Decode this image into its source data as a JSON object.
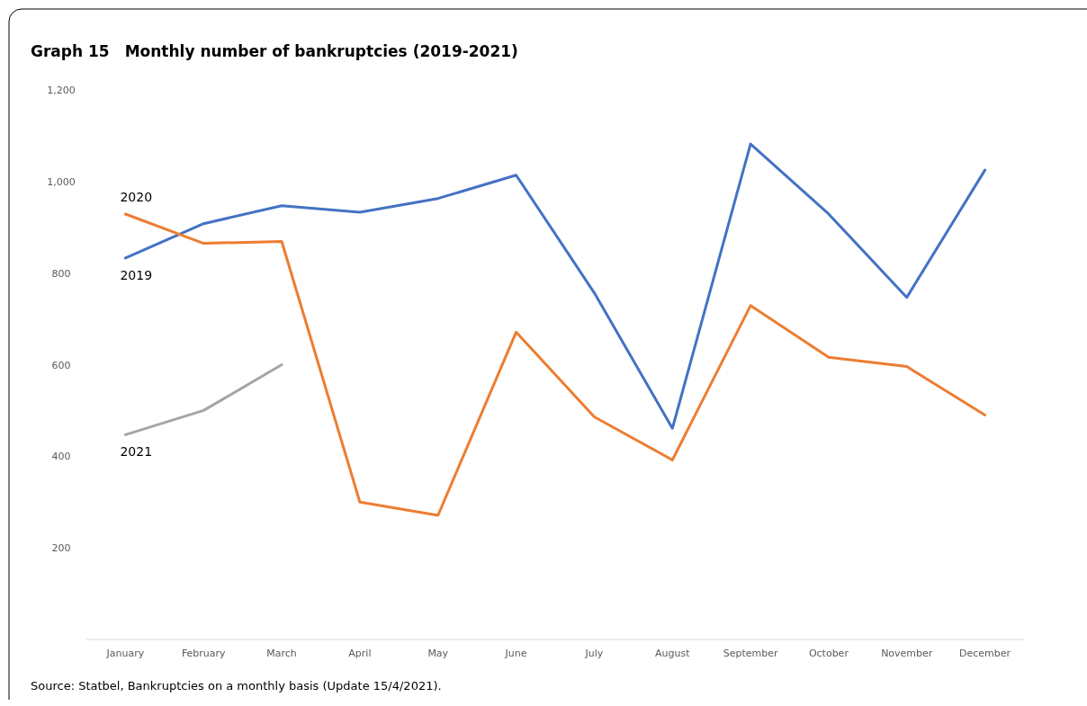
{
  "chart_data": {
    "type": "line",
    "title": "Graph 15 Monthly number of bankruptcies (2019-2021)",
    "categories": [
      "January",
      "February",
      "March",
      "April",
      "May",
      "June",
      "July",
      "August",
      "September",
      "October",
      "November",
      "December"
    ],
    "series": [
      {
        "name": "2019",
        "color": "#4472c4",
        "values": [
          833,
          908,
          947,
          933,
          963,
          1014,
          757,
          461,
          1082,
          929,
          747,
          1025
        ]
      },
      {
        "name": "2020",
        "color": "#ed7d31",
        "values": [
          929,
          865,
          869,
          300,
          271,
          671,
          486,
          392,
          729,
          616,
          596,
          490
        ]
      },
      {
        "name": "2021",
        "color": "#a5a5a5",
        "values": [
          447,
          500,
          600,
          null,
          null,
          null,
          null,
          null,
          null,
          null,
          null,
          null
        ]
      }
    ],
    "ylim": [
      0,
      1200
    ],
    "yticks": [
      {
        "value": 200,
        "label": "200"
      },
      {
        "value": 400,
        "label": "400"
      },
      {
        "value": 600,
        "label": "600"
      },
      {
        "value": 800,
        "label": "800"
      },
      {
        "value": 1000,
        "label": "1,000"
      },
      {
        "value": 1200,
        "label": "1,200"
      }
    ],
    "grid": false,
    "legend": false,
    "annotations": [
      "Source: Statbel, Bankruptcies on a monthly basis (Update 15/4/2021)."
    ]
  }
}
